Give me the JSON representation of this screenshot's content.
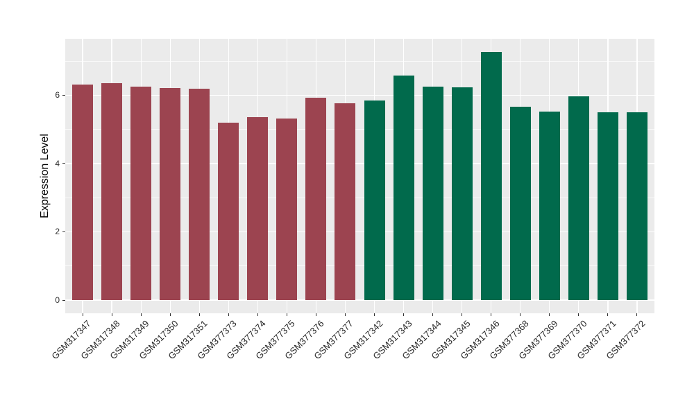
{
  "chart_data": {
    "type": "bar",
    "title": "",
    "xlabel": "",
    "ylabel": "Expression Level",
    "categories": [
      "GSM317347",
      "GSM317348",
      "GSM317349",
      "GSM317350",
      "GSM317351",
      "GSM377373",
      "GSM377374",
      "GSM377375",
      "GSM377376",
      "GSM377377",
      "GSM317342",
      "GSM317343",
      "GSM317344",
      "GSM317345",
      "GSM317346",
      "GSM377368",
      "GSM377369",
      "GSM377370",
      "GSM377371",
      "GSM377372"
    ],
    "values": [
      6.31,
      6.36,
      6.26,
      6.21,
      6.18,
      5.2,
      5.36,
      5.32,
      5.92,
      5.76,
      5.85,
      6.58,
      6.24,
      6.23,
      7.27,
      5.67,
      5.52,
      5.97,
      5.5,
      5.5
    ],
    "groups": [
      "maroon",
      "maroon",
      "maroon",
      "maroon",
      "maroon",
      "maroon",
      "maroon",
      "maroon",
      "maroon",
      "maroon",
      "green",
      "green",
      "green",
      "green",
      "green",
      "green",
      "green",
      "green",
      "green",
      "green"
    ],
    "group_colors": {
      "maroon": "#9C4450",
      "green": "#016A4C"
    },
    "yticks": [
      0,
      2,
      4,
      6
    ],
    "ytick_labels": [
      "0",
      "2",
      "4",
      "6"
    ],
    "yticks_minor": [
      1,
      3,
      5,
      7
    ],
    "ylim": [
      -0.385,
      7.65
    ],
    "panel_bg": "#EBEBEB",
    "grid_color": "#FFFFFF",
    "legend": "none",
    "grid": "on"
  }
}
